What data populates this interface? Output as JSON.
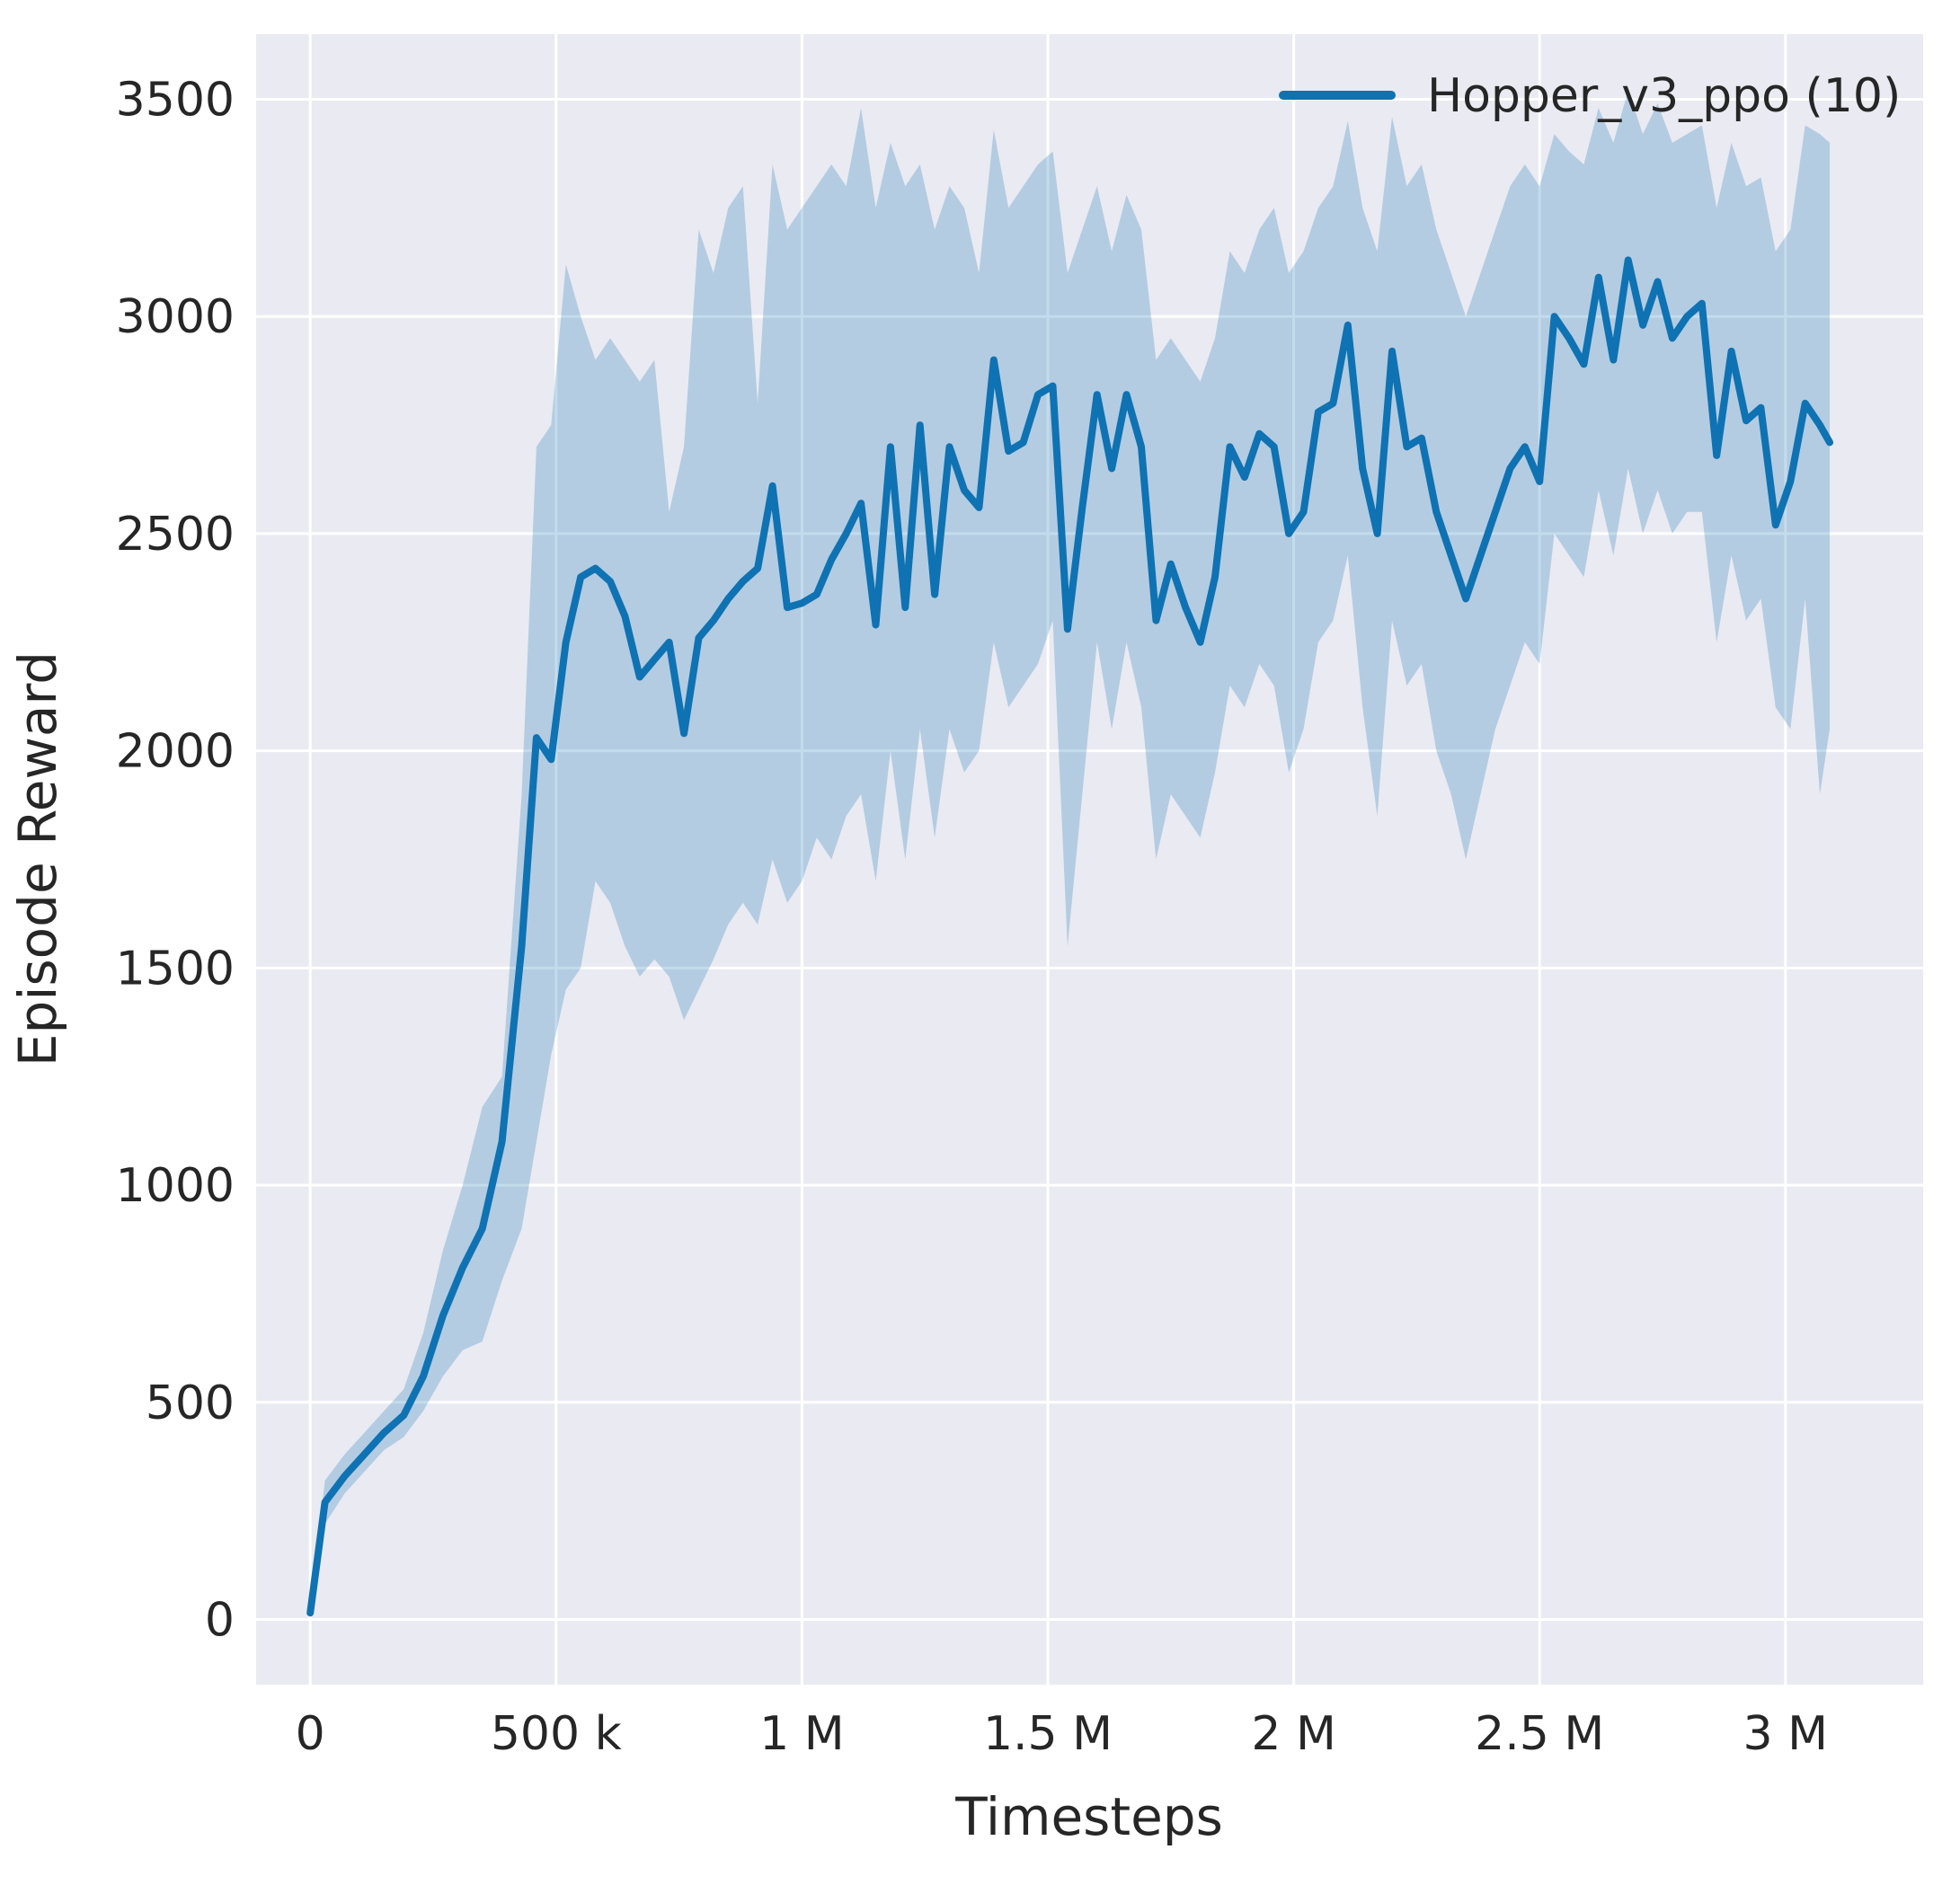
{
  "chart_data": {
    "type": "line",
    "title": "",
    "xlabel": "Timesteps",
    "ylabel": "Episode Reward",
    "xlim": [
      -110000,
      3280000
    ],
    "ylim": [
      -150,
      3650
    ],
    "grid": true,
    "colors": {
      "panel": "#eaeaf2",
      "grid": "#ffffff",
      "text": "#262626",
      "accent": "#0f72b2"
    },
    "band_opacity": 0.25,
    "legend": {
      "position": "upper right",
      "entries": [
        {
          "label": "Hopper_v3_ppo (10)",
          "color": "#0f72b2"
        }
      ]
    },
    "xticks": [
      {
        "v": 0,
        "label": "0"
      },
      {
        "v": 500000,
        "label": "500 k"
      },
      {
        "v": 1000000,
        "label": "1 M"
      },
      {
        "v": 1500000,
        "label": "1.5 M"
      },
      {
        "v": 2000000,
        "label": "2 M"
      },
      {
        "v": 2500000,
        "label": "2.5 M"
      },
      {
        "v": 3000000,
        "label": "3 M"
      }
    ],
    "yticks": [
      {
        "v": 0,
        "label": "0"
      },
      {
        "v": 500,
        "label": "500"
      },
      {
        "v": 1000,
        "label": "1000"
      },
      {
        "v": 1500,
        "label": "1500"
      },
      {
        "v": 2000,
        "label": "2000"
      },
      {
        "v": 2500,
        "label": "2500"
      },
      {
        "v": 3000,
        "label": "3000"
      },
      {
        "v": 3500,
        "label": "3500"
      }
    ],
    "series": [
      {
        "name": "Hopper_v3_ppo (10)",
        "color": "#0f72b2",
        "x": [
          0,
          30000,
          70000,
          110000,
          150000,
          190000,
          230000,
          270000,
          310000,
          350000,
          390000,
          430000,
          460000,
          490000,
          520000,
          550000,
          580000,
          610000,
          640000,
          670000,
          700000,
          730000,
          760000,
          790000,
          820000,
          850000,
          880000,
          910000,
          940000,
          970000,
          1000000,
          1030000,
          1060000,
          1090000,
          1120000,
          1150000,
          1180000,
          1210000,
          1240000,
          1270000,
          1300000,
          1330000,
          1360000,
          1390000,
          1420000,
          1450000,
          1480000,
          1510000,
          1540000,
          1570000,
          1600000,
          1630000,
          1660000,
          1690000,
          1720000,
          1750000,
          1780000,
          1810000,
          1840000,
          1870000,
          1900000,
          1930000,
          1960000,
          1990000,
          2020000,
          2050000,
          2080000,
          2110000,
          2140000,
          2170000,
          2200000,
          2230000,
          2260000,
          2290000,
          2320000,
          2350000,
          2380000,
          2410000,
          2440000,
          2470000,
          2500000,
          2530000,
          2560000,
          2590000,
          2620000,
          2650000,
          2680000,
          2710000,
          2740000,
          2770000,
          2800000,
          2830000,
          2860000,
          2890000,
          2920000,
          2950000,
          2980000,
          3010000,
          3040000,
          3070000,
          3090000
        ],
        "mean": [
          15,
          270,
          330,
          380,
          430,
          470,
          560,
          700,
          810,
          900,
          1100,
          1550,
          2030,
          1980,
          2250,
          2400,
          2420,
          2390,
          2310,
          2170,
          2210,
          2250,
          2040,
          2260,
          2300,
          2350,
          2390,
          2420,
          2610,
          2330,
          2340,
          2360,
          2440,
          2500,
          2570,
          2290,
          2700,
          2330,
          2750,
          2360,
          2700,
          2600,
          2560,
          2900,
          2690,
          2710,
          2820,
          2840,
          2280,
          2560,
          2820,
          2650,
          2820,
          2700,
          2300,
          2430,
          2330,
          2250,
          2400,
          2700,
          2630,
          2730,
          2700,
          2500,
          2550,
          2780,
          2800,
          2980,
          2650,
          2500,
          2920,
          2700,
          2720,
          2550,
          2450,
          2350,
          2450,
          2550,
          2650,
          2700,
          2620,
          3000,
          2950,
          2890,
          3090,
          2900,
          3130,
          2980,
          3080,
          2950,
          3000,
          3030,
          2680,
          2920,
          2760,
          2790,
          2520,
          2620,
          2800,
          2750,
          2710
        ],
        "lower": [
          10,
          220,
          290,
          340,
          390,
          420,
          480,
          560,
          620,
          640,
          780,
          900,
          1100,
          1300,
          1450,
          1500,
          1700,
          1650,
          1550,
          1480,
          1520,
          1480,
          1380,
          1450,
          1520,
          1600,
          1650,
          1600,
          1750,
          1650,
          1700,
          1800,
          1750,
          1850,
          1900,
          1700,
          2000,
          1750,
          2050,
          1800,
          2050,
          1950,
          2000,
          2250,
          2100,
          2150,
          2200,
          2300,
          1550,
          1900,
          2250,
          2050,
          2250,
          2100,
          1750,
          1900,
          1850,
          1800,
          1950,
          2150,
          2100,
          2200,
          2150,
          1950,
          2050,
          2250,
          2300,
          2450,
          2100,
          1850,
          2300,
          2150,
          2200,
          2000,
          1900,
          1750,
          1900,
          2050,
          2150,
          2250,
          2200,
          2500,
          2450,
          2400,
          2600,
          2450,
          2650,
          2500,
          2600,
          2500,
          2550,
          2550,
          2250,
          2450,
          2300,
          2350,
          2100,
          2050,
          2350,
          1900,
          2050
        ],
        "upper": [
          25,
          320,
          380,
          430,
          480,
          530,
          660,
          850,
          1000,
          1180,
          1250,
          1900,
          2700,
          2750,
          3120,
          3000,
          2900,
          2950,
          2900,
          2850,
          2900,
          2550,
          2700,
          3200,
          3100,
          3250,
          3300,
          2800,
          3350,
          3200,
          3250,
          3300,
          3350,
          3300,
          3480,
          3250,
          3400,
          3300,
          3350,
          3200,
          3300,
          3250,
          3100,
          3430,
          3250,
          3300,
          3350,
          3380,
          3100,
          3200,
          3300,
          3150,
          3280,
          3200,
          2900,
          2950,
          2900,
          2850,
          2950,
          3150,
          3100,
          3200,
          3250,
          3100,
          3150,
          3250,
          3300,
          3450,
          3250,
          3150,
          3460,
          3300,
          3350,
          3200,
          3100,
          3000,
          3100,
          3200,
          3300,
          3350,
          3300,
          3420,
          3380,
          3350,
          3480,
          3400,
          3520,
          3420,
          3490,
          3400,
          3420,
          3440,
          3250,
          3400,
          3300,
          3320,
          3150,
          3200,
          3440,
          3420,
          3400
        ]
      }
    ]
  }
}
